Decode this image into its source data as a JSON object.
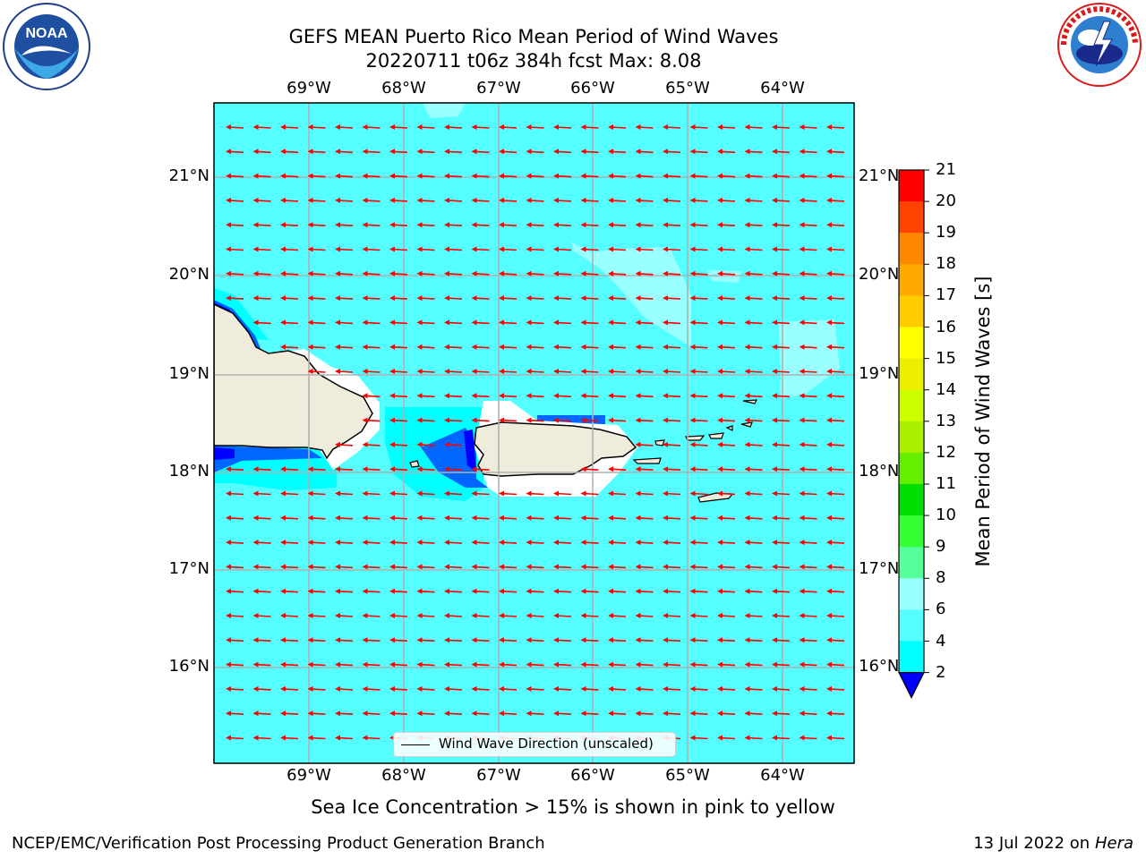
{
  "header": {
    "title_line1": "GEFS MEAN Puerto Rico Mean Period of Wind Waves",
    "title_line2": "20220711 t06z 384h fcst   Max: 8.08"
  },
  "logos": {
    "left": {
      "name": "NOAA",
      "ring_text": "NATIONAL OCEANIC AND ATMOSPHERIC ADMINISTRATION · U.S. DEPARTMENT OF COMMERCE"
    },
    "right": {
      "name": "NATIONAL WEATHER SERVICE"
    }
  },
  "map": {
    "x_ticks": [
      "69°W",
      "68°W",
      "67°W",
      "66°W",
      "65°W",
      "64°W"
    ],
    "y_ticks": [
      "21°N",
      "20°N",
      "19°N",
      "18°N",
      "17°N",
      "16°N"
    ],
    "legend_label": "Wind Wave Direction (unscaled)",
    "background_value_color": "#55ffff",
    "arrow_color": "#ff0000",
    "land_color": "#efecdc"
  },
  "colorbar": {
    "label": "Mean Period of Wind Waves [s]",
    "ticks": [
      "2",
      "4",
      "6",
      "8",
      "9",
      "10",
      "11",
      "12",
      "13",
      "14",
      "15",
      "16",
      "17",
      "18",
      "19",
      "20",
      "21"
    ],
    "colors": [
      "#0066ff",
      "#00ffff",
      "#55ffff",
      "#99ffff",
      "#55ff99",
      "#33ff33",
      "#00dd00",
      "#66ee00",
      "#aaee00",
      "#ccff00",
      "#eeee00",
      "#ffff00",
      "#ffcc00",
      "#ffaa00",
      "#ff8800",
      "#ff4400",
      "#ff0000"
    ],
    "under_color": "#0000ff"
  },
  "footer": {
    "note": "Sea Ice Concentration > 15% is shown in pink to yellow",
    "left": "NCEP/EMC/Verification Post Processing Product Generation Branch",
    "right_date": "13 Jul 2022 on",
    "right_machine": "Hera"
  }
}
